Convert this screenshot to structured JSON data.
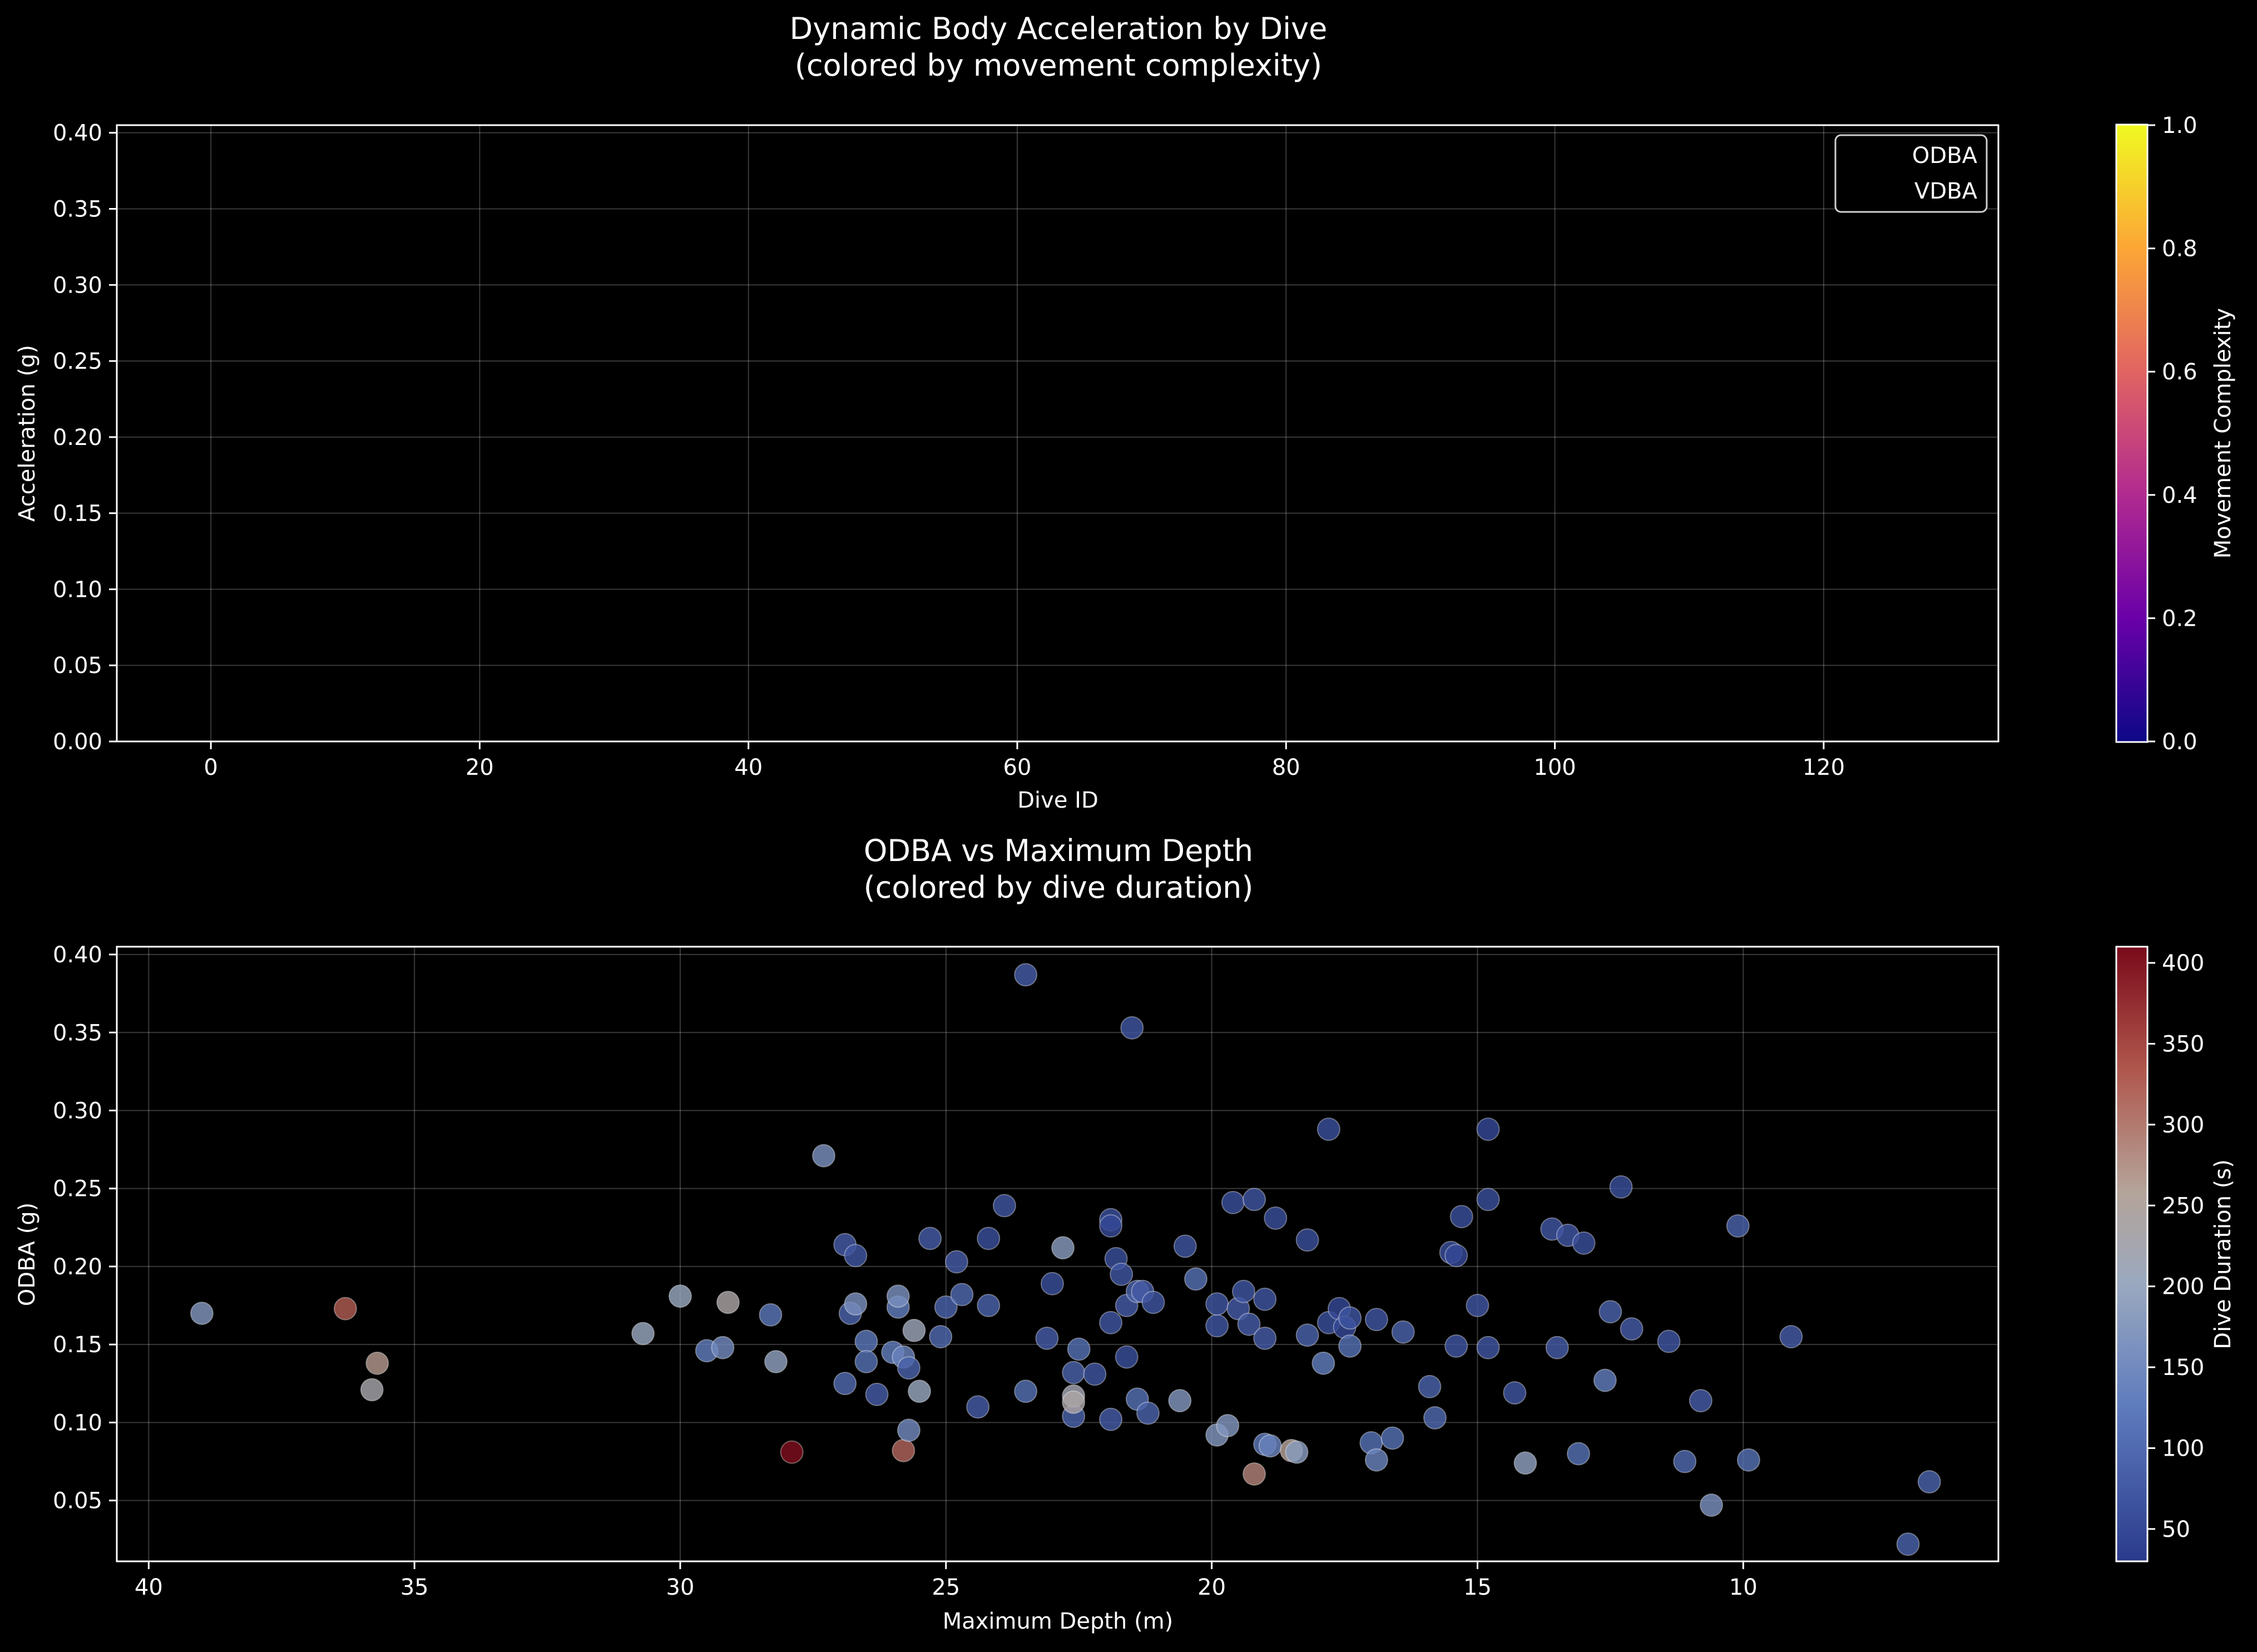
{
  "chart_data": [
    {
      "type": "scatter",
      "title": "Dynamic Body Acceleration by Dive\n(colored by movement complexity)",
      "xlabel": "Dive ID",
      "ylabel": "Acceleration (g)",
      "xlim": [
        -7,
        133
      ],
      "ylim": [
        0,
        0.405
      ],
      "xticks": [
        0,
        20,
        40,
        60,
        80,
        100,
        120
      ],
      "yticks": [
        0.0,
        0.05,
        0.1,
        0.15,
        0.2,
        0.25,
        0.3,
        0.35,
        0.4
      ],
      "grid": true,
      "legend": {
        "placement": "top-right",
        "entries": [
          "ODBA",
          "VDBA"
        ]
      },
      "series": [
        {
          "name": "ODBA",
          "x": [],
          "y": []
        },
        {
          "name": "VDBA",
          "x": [],
          "y": []
        }
      ],
      "colorbar": {
        "label": "Movement Complexity",
        "range": [
          0.0,
          1.0
        ],
        "ticks": [
          0.0,
          0.2,
          0.4,
          0.6,
          0.8,
          1.0
        ],
        "colormap": "plasma"
      }
    },
    {
      "type": "scatter",
      "title": "ODBA vs Maximum Depth\n(colored by dive duration)",
      "xlabel": "Maximum Depth (m)",
      "ylabel": "ODBA (g)",
      "xlim": [
        40.6,
        5.2
      ],
      "ylim": [
        0.011,
        0.405
      ],
      "x_inverted": true,
      "xticks": [
        40,
        35,
        30,
        25,
        20,
        15,
        10
      ],
      "yticks": [
        0.05,
        0.1,
        0.15,
        0.2,
        0.25,
        0.3,
        0.35,
        0.4
      ],
      "grid": true,
      "colorbar": {
        "label": "Dive Duration (s)",
        "range": [
          30,
          410
        ],
        "ticks": [
          50,
          100,
          150,
          200,
          250,
          300,
          350,
          400
        ],
        "colormap": "coolwarm-like (blue to dark red)"
      },
      "points": [
        {
          "depth": 39.0,
          "odba": 0.17,
          "duration": 170
        },
        {
          "depth": 36.3,
          "odba": 0.173,
          "duration": 330
        },
        {
          "depth": 35.7,
          "odba": 0.138,
          "duration": 270
        },
        {
          "depth": 35.8,
          "odba": 0.121,
          "duration": 230
        },
        {
          "depth": 30.7,
          "odba": 0.157,
          "duration": 200
        },
        {
          "depth": 30.0,
          "odba": 0.181,
          "duration": 200
        },
        {
          "depth": 29.5,
          "odba": 0.146,
          "duration": 130
        },
        {
          "depth": 29.2,
          "odba": 0.148,
          "duration": 150
        },
        {
          "depth": 29.1,
          "odba": 0.177,
          "duration": 240
        },
        {
          "depth": 28.3,
          "odba": 0.169,
          "duration": 120
        },
        {
          "depth": 28.2,
          "odba": 0.139,
          "duration": 190
        },
        {
          "depth": 27.9,
          "odba": 0.081,
          "duration": 405
        },
        {
          "depth": 27.3,
          "odba": 0.271,
          "duration": 160
        },
        {
          "depth": 26.9,
          "odba": 0.214,
          "duration": 80
        },
        {
          "depth": 26.9,
          "odba": 0.125,
          "duration": 100
        },
        {
          "depth": 26.8,
          "odba": 0.17,
          "duration": 90
        },
        {
          "depth": 26.7,
          "odba": 0.176,
          "duration": 160
        },
        {
          "depth": 26.7,
          "odba": 0.207,
          "duration": 70
        },
        {
          "depth": 26.5,
          "odba": 0.152,
          "duration": 120
        },
        {
          "depth": 26.5,
          "odba": 0.139,
          "duration": 110
        },
        {
          "depth": 26.3,
          "odba": 0.118,
          "duration": 80
        },
        {
          "depth": 26.0,
          "odba": 0.145,
          "duration": 130
        },
        {
          "depth": 25.9,
          "odba": 0.174,
          "duration": 130
        },
        {
          "depth": 25.9,
          "odba": 0.181,
          "duration": 160
        },
        {
          "depth": 25.8,
          "odba": 0.142,
          "duration": 140
        },
        {
          "depth": 25.8,
          "odba": 0.082,
          "duration": 320
        },
        {
          "depth": 25.7,
          "odba": 0.135,
          "duration": 90
        },
        {
          "depth": 25.7,
          "odba": 0.095,
          "duration": 150
        },
        {
          "depth": 25.6,
          "odba": 0.159,
          "duration": 210
        },
        {
          "depth": 25.5,
          "odba": 0.12,
          "duration": 200
        },
        {
          "depth": 25.3,
          "odba": 0.218,
          "duration": 80
        },
        {
          "depth": 25.1,
          "odba": 0.155,
          "duration": 100
        },
        {
          "depth": 25.0,
          "odba": 0.174,
          "duration": 90
        },
        {
          "depth": 24.8,
          "odba": 0.203,
          "duration": 80
        },
        {
          "depth": 24.7,
          "odba": 0.182,
          "duration": 100
        },
        {
          "depth": 24.4,
          "odba": 0.11,
          "duration": 80
        },
        {
          "depth": 24.2,
          "odba": 0.218,
          "duration": 60
        },
        {
          "depth": 24.2,
          "odba": 0.175,
          "duration": 90
        },
        {
          "depth": 23.9,
          "odba": 0.239,
          "duration": 70
        },
        {
          "depth": 23.5,
          "odba": 0.387,
          "duration": 80
        },
        {
          "depth": 23.5,
          "odba": 0.12,
          "duration": 110
        },
        {
          "depth": 23.1,
          "odba": 0.154,
          "duration": 80
        },
        {
          "depth": 23.0,
          "odba": 0.189,
          "duration": 60
        },
        {
          "depth": 22.8,
          "odba": 0.212,
          "duration": 180
        },
        {
          "depth": 22.6,
          "odba": 0.132,
          "duration": 90
        },
        {
          "depth": 22.6,
          "odba": 0.104,
          "duration": 90
        },
        {
          "depth": 22.6,
          "odba": 0.117,
          "duration": 220
        },
        {
          "depth": 22.6,
          "odba": 0.113,
          "duration": 240
        },
        {
          "depth": 22.5,
          "odba": 0.147,
          "duration": 110
        },
        {
          "depth": 22.2,
          "odba": 0.131,
          "duration": 70
        },
        {
          "depth": 21.9,
          "odba": 0.23,
          "duration": 60
        },
        {
          "depth": 21.9,
          "odba": 0.226,
          "duration": 50
        },
        {
          "depth": 21.9,
          "odba": 0.102,
          "duration": 80
        },
        {
          "depth": 21.9,
          "odba": 0.164,
          "duration": 70
        },
        {
          "depth": 21.8,
          "odba": 0.205,
          "duration": 60
        },
        {
          "depth": 21.7,
          "odba": 0.195,
          "duration": 70
        },
        {
          "depth": 21.6,
          "odba": 0.175,
          "duration": 80
        },
        {
          "depth": 21.6,
          "odba": 0.142,
          "duration": 60
        },
        {
          "depth": 21.5,
          "odba": 0.353,
          "duration": 70
        },
        {
          "depth": 21.4,
          "odba": 0.184,
          "duration": 90
        },
        {
          "depth": 21.4,
          "odba": 0.115,
          "duration": 110
        },
        {
          "depth": 21.3,
          "odba": 0.184,
          "duration": 80
        },
        {
          "depth": 21.2,
          "odba": 0.106,
          "duration": 90
        },
        {
          "depth": 21.1,
          "odba": 0.177,
          "duration": 70
        },
        {
          "depth": 20.6,
          "odba": 0.114,
          "duration": 170
        },
        {
          "depth": 20.5,
          "odba": 0.213,
          "duration": 70
        },
        {
          "depth": 20.3,
          "odba": 0.192,
          "duration": 110
        },
        {
          "depth": 19.9,
          "odba": 0.162,
          "duration": 70
        },
        {
          "depth": 19.9,
          "odba": 0.176,
          "duration": 70
        },
        {
          "depth": 19.9,
          "odba": 0.092,
          "duration": 170
        },
        {
          "depth": 19.7,
          "odba": 0.098,
          "duration": 170
        },
        {
          "depth": 19.6,
          "odba": 0.241,
          "duration": 60
        },
        {
          "depth": 19.5,
          "odba": 0.173,
          "duration": 80
        },
        {
          "depth": 19.4,
          "odba": 0.184,
          "duration": 70
        },
        {
          "depth": 19.3,
          "odba": 0.163,
          "duration": 80
        },
        {
          "depth": 19.2,
          "odba": 0.243,
          "duration": 70
        },
        {
          "depth": 19.2,
          "odba": 0.067,
          "duration": 290
        },
        {
          "depth": 19.0,
          "odba": 0.179,
          "duration": 70
        },
        {
          "depth": 19.0,
          "odba": 0.154,
          "duration": 80
        },
        {
          "depth": 19.0,
          "odba": 0.086,
          "duration": 120
        },
        {
          "depth": 18.9,
          "odba": 0.085,
          "duration": 140
        },
        {
          "depth": 18.8,
          "odba": 0.231,
          "duration": 60
        },
        {
          "depth": 18.5,
          "odba": 0.082,
          "duration": 260
        },
        {
          "depth": 18.4,
          "odba": 0.081,
          "duration": 180
        },
        {
          "depth": 18.2,
          "odba": 0.217,
          "duration": 60
        },
        {
          "depth": 18.2,
          "odba": 0.156,
          "duration": 90
        },
        {
          "depth": 17.9,
          "odba": 0.138,
          "duration": 130
        },
        {
          "depth": 17.8,
          "odba": 0.288,
          "duration": 60
        },
        {
          "depth": 17.8,
          "odba": 0.164,
          "duration": 60
        },
        {
          "depth": 17.6,
          "odba": 0.173,
          "duration": 50
        },
        {
          "depth": 17.5,
          "odba": 0.161,
          "duration": 50
        },
        {
          "depth": 17.4,
          "odba": 0.167,
          "duration": 70
        },
        {
          "depth": 17.4,
          "odba": 0.149,
          "duration": 110
        },
        {
          "depth": 17.0,
          "odba": 0.087,
          "duration": 110
        },
        {
          "depth": 16.9,
          "odba": 0.166,
          "duration": 70
        },
        {
          "depth": 16.9,
          "odba": 0.076,
          "duration": 140
        },
        {
          "depth": 16.6,
          "odba": 0.09,
          "duration": 110
        },
        {
          "depth": 16.4,
          "odba": 0.158,
          "duration": 90
        },
        {
          "depth": 15.9,
          "odba": 0.123,
          "duration": 90
        },
        {
          "depth": 15.8,
          "odba": 0.103,
          "duration": 100
        },
        {
          "depth": 15.5,
          "odba": 0.209,
          "duration": 60
        },
        {
          "depth": 15.4,
          "odba": 0.207,
          "duration": 50
        },
        {
          "depth": 15.4,
          "odba": 0.149,
          "duration": 70
        },
        {
          "depth": 15.3,
          "odba": 0.232,
          "duration": 60
        },
        {
          "depth": 15.0,
          "odba": 0.175,
          "duration": 70
        },
        {
          "depth": 14.8,
          "odba": 0.288,
          "duration": 50
        },
        {
          "depth": 14.8,
          "odba": 0.243,
          "duration": 60
        },
        {
          "depth": 14.8,
          "odba": 0.148,
          "duration": 70
        },
        {
          "depth": 14.3,
          "odba": 0.119,
          "duration": 70
        },
        {
          "depth": 14.1,
          "odba": 0.074,
          "duration": 190
        },
        {
          "depth": 13.6,
          "odba": 0.224,
          "duration": 70
        },
        {
          "depth": 13.5,
          "odba": 0.148,
          "duration": 80
        },
        {
          "depth": 13.3,
          "odba": 0.22,
          "duration": 70
        },
        {
          "depth": 13.1,
          "odba": 0.08,
          "duration": 110
        },
        {
          "depth": 13.0,
          "odba": 0.215,
          "duration": 60
        },
        {
          "depth": 12.6,
          "odba": 0.127,
          "duration": 130
        },
        {
          "depth": 12.5,
          "odba": 0.171,
          "duration": 90
        },
        {
          "depth": 12.3,
          "odba": 0.251,
          "duration": 60
        },
        {
          "depth": 12.1,
          "odba": 0.16,
          "duration": 80
        },
        {
          "depth": 11.4,
          "odba": 0.152,
          "duration": 70
        },
        {
          "depth": 11.1,
          "odba": 0.075,
          "duration": 100
        },
        {
          "depth": 10.8,
          "odba": 0.114,
          "duration": 80
        },
        {
          "depth": 10.6,
          "odba": 0.047,
          "duration": 160
        },
        {
          "depth": 10.1,
          "odba": 0.226,
          "duration": 90
        },
        {
          "depth": 9.9,
          "odba": 0.076,
          "duration": 110
        },
        {
          "depth": 9.1,
          "odba": 0.155,
          "duration": 80
        },
        {
          "depth": 6.9,
          "odba": 0.022,
          "duration": 90
        },
        {
          "depth": 6.5,
          "odba": 0.062,
          "duration": 90
        }
      ]
    }
  ]
}
